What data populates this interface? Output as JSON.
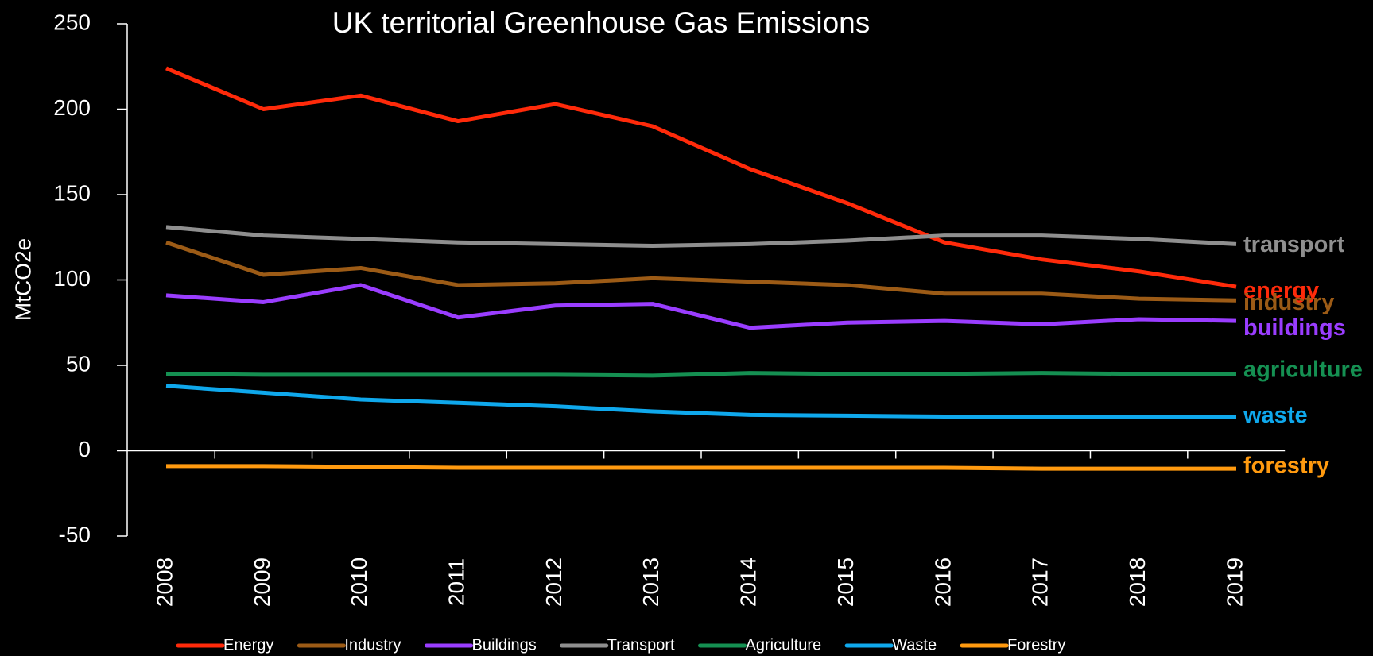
{
  "chart_data": {
    "type": "line",
    "title": "UK territorial Greenhouse Gas Emissions",
    "y_label": "MtCO2e",
    "categories": [
      "2008",
      "2009",
      "2010",
      "2011",
      "2012",
      "2013",
      "2014",
      "2015",
      "2016",
      "2017",
      "2018",
      "2019"
    ],
    "ylim": [
      -50,
      250
    ],
    "yticks": [
      -50,
      0,
      50,
      100,
      150,
      200,
      250
    ],
    "grid": false,
    "legend": "bottom",
    "series": [
      {
        "name": "Energy",
        "label": "energy",
        "color": "#ff2a0a",
        "values": [
          224,
          200,
          208,
          193,
          203,
          190,
          165,
          145,
          122,
          112,
          105,
          96
        ]
      },
      {
        "name": "Industry",
        "label": "industry",
        "color": "#9c5b16",
        "values": [
          122,
          103,
          107,
          97,
          98,
          101,
          99,
          97,
          92,
          92,
          89,
          88
        ]
      },
      {
        "name": "Buildings",
        "label": "buildings",
        "color": "#9a3dff",
        "values": [
          91,
          87,
          97,
          78,
          85,
          86,
          72,
          75,
          76,
          74,
          77,
          76
        ]
      },
      {
        "name": "Transport",
        "label": "transport",
        "color": "#8f8f8f",
        "values": [
          131,
          126,
          124,
          122,
          121,
          120,
          121,
          123,
          126,
          126,
          124,
          121
        ]
      },
      {
        "name": "Agriculture",
        "label": "agriculture",
        "color": "#159052",
        "values": [
          45,
          44.5,
          44.5,
          44.5,
          44.5,
          44,
          45.5,
          45,
          45,
          45.5,
          45,
          45
        ]
      },
      {
        "name": "Waste",
        "label": "waste",
        "color": "#0fa8ec",
        "values": [
          38,
          34,
          30,
          28,
          26,
          23,
          21,
          20.5,
          20,
          20,
          20,
          20
        ]
      },
      {
        "name": "Forestry",
        "label": "forestry",
        "color": "#ff9a0f",
        "values": [
          -9,
          -9,
          -9.5,
          -10,
          -10,
          -10,
          -10,
          -10,
          -10,
          -10.5,
          -10.5,
          -10.5
        ]
      }
    ]
  }
}
